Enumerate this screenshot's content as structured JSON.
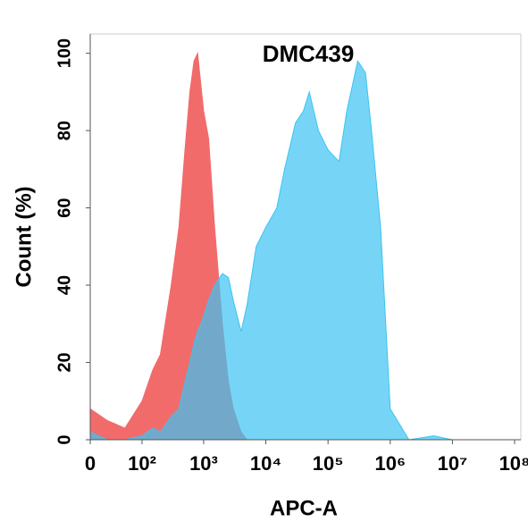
{
  "chart_data": {
    "type": "area",
    "title": "DMC439",
    "xlabel": "APC-A",
    "ylabel": "Count  (%)",
    "xscale": "biexponential",
    "x": [
      0,
      20,
      50,
      100,
      150,
      200,
      300,
      400,
      500,
      600,
      700,
      800,
      900,
      1000,
      1200,
      1500,
      2000,
      2500,
      3000,
      4000,
      5000,
      7000,
      10000,
      15000,
      20000,
      30000,
      40000,
      50000,
      70000,
      100000,
      150000,
      200000,
      300000,
      400000,
      500000,
      700000,
      1000000,
      2000000,
      5000000,
      10000000,
      100000000
    ],
    "series": [
      {
        "color": "#f26b6b",
        "values": [
          8,
          5,
          3,
          10,
          18,
          22,
          40,
          55,
          75,
          90,
          98,
          100,
          92,
          85,
          78,
          55,
          30,
          15,
          8,
          2,
          0,
          0,
          0,
          0,
          0,
          0,
          0,
          0,
          0,
          0,
          0,
          0,
          0,
          0,
          0,
          0,
          0,
          0,
          0,
          0,
          0
        ]
      },
      {
        "color": "#3cc3f2",
        "values": [
          2,
          0,
          0,
          1,
          3,
          2,
          6,
          8,
          15,
          20,
          25,
          28,
          30,
          32,
          36,
          40,
          43,
          42,
          36,
          28,
          35,
          50,
          55,
          60,
          70,
          82,
          85,
          90,
          80,
          75,
          72,
          85,
          98,
          95,
          80,
          55,
          8,
          0,
          1,
          0,
          0
        ]
      }
    ],
    "xlim": [
      0,
      100000000
    ],
    "xticks": [
      0,
      {
        "value": 100,
        "label": "10²"
      },
      {
        "value": 1000,
        "label": "10³"
      },
      {
        "value": 10000,
        "label": "10⁴"
      },
      {
        "value": 100000,
        "label": "10⁵"
      },
      {
        "value": 1000000,
        "label": "10⁶"
      },
      {
        "value": 10000000,
        "label": "10⁷"
      },
      {
        "value": 100000000,
        "label": "10⁸"
      }
    ],
    "ylim": [
      0,
      105
    ],
    "yticks": [
      0,
      20,
      40,
      60,
      80,
      100
    ]
  }
}
